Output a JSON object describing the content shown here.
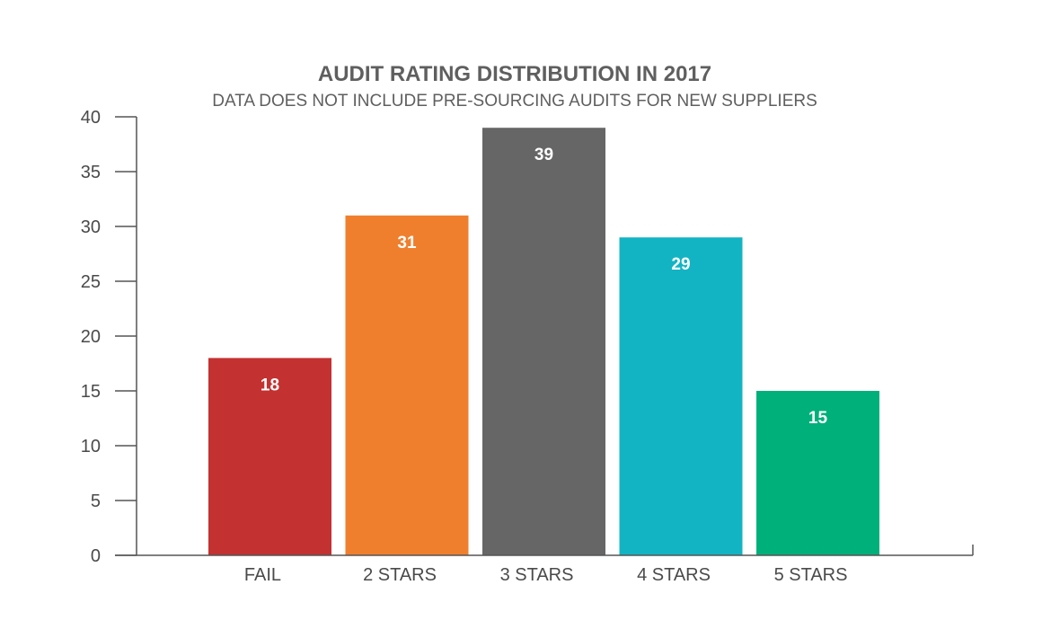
{
  "chart_data": {
    "type": "bar",
    "title": "AUDIT RATING DISTRIBUTION IN 2017",
    "subtitle": "DATA DOES NOT INCLUDE PRE-SOURCING AUDITS FOR NEW SUPPLIERS",
    "xlabel": "",
    "ylabel": "",
    "categories": [
      "FAIL",
      "2 STARS",
      "3 STARS",
      "4 STARS",
      "5 STARS"
    ],
    "values": [
      18,
      31,
      39,
      29,
      15
    ],
    "data_labels": [
      "18",
      "31",
      "39",
      "29",
      "15"
    ],
    "colors": [
      "#c33131",
      "#f07f2d",
      "#666666",
      "#12b4c4",
      "#00b07a"
    ],
    "ylim": [
      0,
      40
    ],
    "yticks": [
      0,
      5,
      10,
      15,
      20,
      25,
      30,
      35,
      40
    ],
    "ytick_labels": [
      "0",
      "5",
      "10",
      "15",
      "20",
      "25",
      "30",
      "35",
      "40"
    ],
    "grid": false,
    "legend": "none"
  }
}
